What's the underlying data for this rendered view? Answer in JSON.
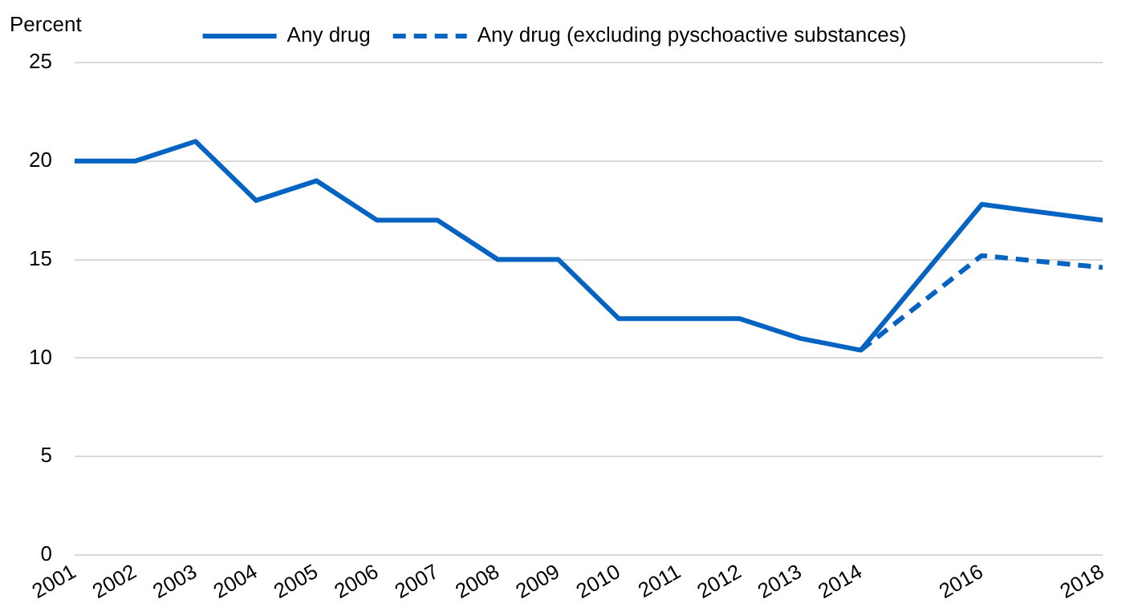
{
  "chart_data": {
    "type": "line",
    "ylabel": "Percent",
    "xlim": [
      2001,
      2018
    ],
    "xticks": [
      2001,
      2002,
      2003,
      2004,
      2005,
      2006,
      2007,
      2008,
      2009,
      2010,
      2011,
      2012,
      2013,
      2014,
      2016,
      2018
    ],
    "ylim": [
      0,
      25
    ],
    "yticks": [
      0,
      5,
      10,
      15,
      20,
      25
    ],
    "grid": "y",
    "legend": "top",
    "marker": "none",
    "series": [
      {
        "name": "Any drug",
        "color": "#0563c1",
        "line_style": "solid",
        "x": [
          2001,
          2002,
          2003,
          2004,
          2005,
          2006,
          2007,
          2008,
          2009,
          2010,
          2011,
          2012,
          2013,
          2014,
          2016,
          2018
        ],
        "values": [
          20,
          20,
          21,
          18,
          19,
          17,
          17,
          15,
          15,
          12,
          12,
          12,
          11,
          10.4,
          17.8,
          17
        ]
      },
      {
        "name": "Any drug (excluding pyschoactive substances)",
        "color": "#0563c1",
        "line_style": "dashed",
        "x": [
          2014,
          2016,
          2018
        ],
        "values": [
          10.4,
          15.2,
          14.6
        ]
      }
    ]
  }
}
